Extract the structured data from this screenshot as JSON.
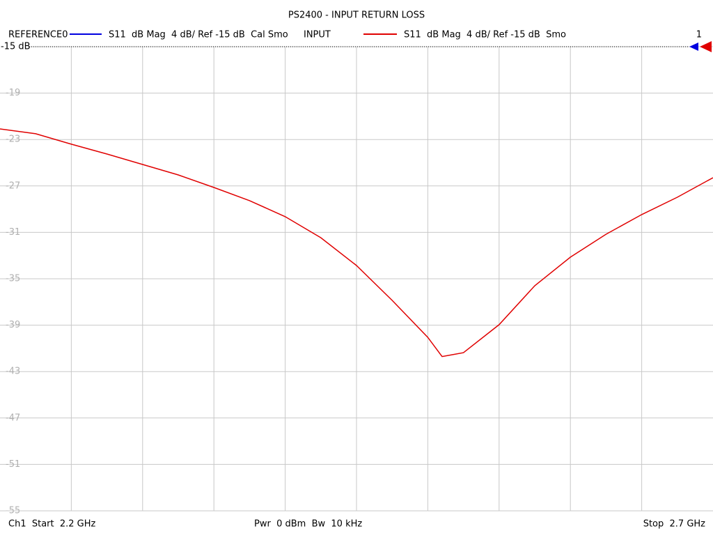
{
  "chart_data": {
    "type": "line",
    "title": "PS2400 - INPUT RETURN LOSS",
    "reference": {
      "name": "REFERENCE0",
      "color": "#0000e0",
      "description": "S11  dB Mag  4 dB/ Ref -15 dB  Cal Smo"
    },
    "series": [
      {
        "name": "INPUT",
        "color": "#e00000",
        "description": "S11  dB Mag  4 dB/ Ref -15 dB  Smo",
        "values": [
          -22.09,
          -22.5,
          -23.4,
          -24.25,
          -25.15,
          -26.05,
          -27.13,
          -28.27,
          -29.65,
          -31.46,
          -33.86,
          -36.86,
          -40.05,
          -41.7,
          -41.37,
          -38.96,
          -35.6,
          -33.14,
          -31.16,
          -29.47,
          -27.97,
          -26.29
        ]
      }
    ],
    "x": [
      2.2,
      2.225,
      2.25,
      2.275,
      2.3,
      2.325,
      2.35,
      2.375,
      2.4,
      2.425,
      2.45,
      2.475,
      2.5,
      2.51,
      2.525,
      2.55,
      2.575,
      2.6,
      2.625,
      2.65,
      2.675,
      2.7
    ],
    "xlim": [
      2.2,
      2.7
    ],
    "x_divisions": 10,
    "ylim": [
      -15,
      -55
    ],
    "yticks": [
      -15,
      -19,
      -23,
      -27,
      -31,
      -35,
      -39,
      -43,
      -47,
      -51,
      -55
    ],
    "ref_label": "-15 dB",
    "channel_marker": "1",
    "footer": {
      "start": "Ch1  Start  2.2 GHz",
      "middle": "Pwr  0 dBm  Bw  10 kHz",
      "stop": "Stop  2.7 GHz"
    },
    "grid": true
  }
}
